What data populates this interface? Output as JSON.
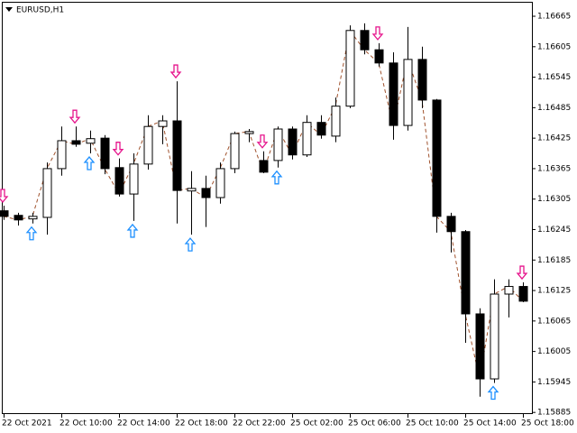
{
  "chart_data": {
    "type": "candlestick",
    "title": "EURUSD,H1",
    "categories": [
      "22 Oct 2021",
      null,
      null,
      null,
      "22 Oct 10:00",
      null,
      null,
      null,
      "22 Oct 14:00",
      null,
      null,
      null,
      "22 Oct 18:00",
      null,
      null,
      null,
      "22 Oct 22:00",
      null,
      null,
      null,
      "25 Oct 02:00",
      null,
      null,
      null,
      "25 Oct 06:00",
      null,
      null,
      null,
      "25 Oct 10:00",
      null,
      null,
      null,
      "25 Oct 14:00",
      null,
      null,
      null,
      "25 Oct 18:00"
    ],
    "open": [
      1.16282,
      1.16273,
      1.16266,
      1.16269,
      1.16365,
      1.1642,
      1.16415,
      1.16425,
      1.16367,
      1.16315,
      1.16374,
      1.16448,
      1.16459,
      1.16321,
      1.16326,
      1.16308,
      1.16365,
      1.16434,
      1.16381,
      1.16381,
      1.16443,
      1.16392,
      1.16456,
      1.16429,
      1.16488,
      1.16637,
      1.16599,
      1.16573,
      1.1645,
      1.1658,
      1.165,
      1.16271,
      1.16241,
      1.16079,
      1.15951,
      1.16118,
      1.16133
    ],
    "high": [
      1.16292,
      1.16278,
      1.16278,
      1.16377,
      1.16448,
      1.16448,
      1.1644,
      1.16431,
      1.16385,
      1.16395,
      1.1647,
      1.1647,
      1.16537,
      1.1636,
      1.16351,
      1.16377,
      1.16438,
      1.16443,
      1.16399,
      1.16448,
      1.16448,
      1.1647,
      1.1647,
      1.16505,
      1.16647,
      1.16651,
      1.16612,
      1.16594,
      1.16644,
      1.16605,
      1.16502,
      1.16278,
      1.16244,
      1.1609,
      1.16147,
      1.16147,
      1.16141
    ],
    "low": [
      1.16264,
      1.16253,
      1.16257,
      1.16235,
      1.16351,
      1.16408,
      1.16395,
      1.16354,
      1.1631,
      1.16262,
      1.16363,
      1.16413,
      1.16257,
      1.16235,
      1.1625,
      1.16296,
      1.16356,
      1.16417,
      1.16356,
      1.16367,
      1.16383,
      1.16388,
      1.16424,
      1.16417,
      1.16484,
      1.1659,
      1.16566,
      1.16422,
      1.1644,
      1.16484,
      1.16239,
      1.162,
      1.16022,
      1.15916,
      1.15943,
      1.16072,
      1.16102
    ],
    "close": [
      1.16271,
      1.16264,
      1.16271,
      1.16365,
      1.1642,
      1.16413,
      1.16424,
      1.16365,
      1.16315,
      1.16374,
      1.16448,
      1.16459,
      1.16322,
      1.16326,
      1.16308,
      1.16365,
      1.16434,
      1.16438,
      1.16358,
      1.16443,
      1.16392,
      1.16456,
      1.16431,
      1.16488,
      1.16637,
      1.16599,
      1.16573,
      1.1645,
      1.1658,
      1.165,
      1.16271,
      1.16241,
      1.16079,
      1.15951,
      1.16118,
      1.16133,
      1.16104
    ],
    "sell_signals": [
      0,
      5,
      8,
      12,
      18,
      26,
      36
    ],
    "buy_signals": [
      2,
      6,
      9,
      13,
      19,
      34
    ],
    "sell_color": "#e6148c",
    "buy_color": "#1e90ff",
    "line_color": "#a0522d",
    "ylim": [
      1.1588,
      1.16697
    ],
    "yticks": [
      1.16665,
      1.16605,
      1.16545,
      1.16485,
      1.16425,
      1.16365,
      1.16305,
      1.16245,
      1.16185,
      1.16125,
      1.16065,
      1.16005,
      1.15945,
      1.15885
    ]
  }
}
